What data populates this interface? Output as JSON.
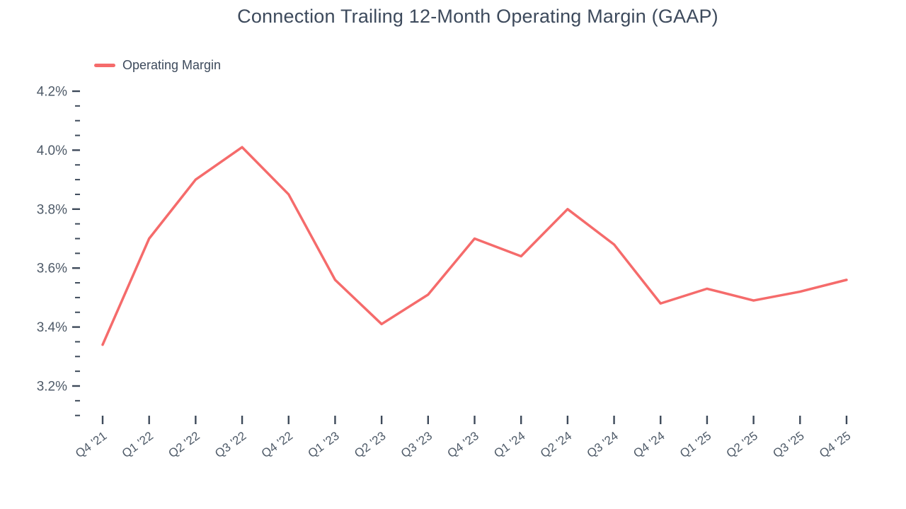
{
  "chart_data": {
    "type": "line",
    "title": "Connection Trailing 12-Month Operating Margin (GAAP)",
    "xlabel": "",
    "ylabel": "",
    "categories": [
      "Q4 '21",
      "Q1 '22",
      "Q2 '22",
      "Q3 '22",
      "Q4 '22",
      "Q1 '23",
      "Q2 '23",
      "Q3 '23",
      "Q4 '23",
      "Q1 '24",
      "Q2 '24",
      "Q3 '24",
      "Q4 '24",
      "Q1 '25",
      "Q2 '25",
      "Q3 '25",
      "Q4 '25"
    ],
    "series": [
      {
        "name": "Operating Margin",
        "color": "#f56b6b",
        "values": [
          3.34,
          3.7,
          3.9,
          4.01,
          3.85,
          3.56,
          3.41,
          3.51,
          3.7,
          3.64,
          3.8,
          3.68,
          3.48,
          3.53,
          3.49,
          3.52,
          3.56
        ]
      }
    ],
    "ylim": [
      3.05,
      4.25
    ],
    "yticks": [
      3.2,
      3.4,
      3.6,
      3.8,
      4.0,
      4.2
    ],
    "ytick_format": "percent",
    "minor_tick_step": 0.05,
    "grid": false,
    "legend_position": "top-left"
  },
  "colors": {
    "line": "#f56b6b",
    "title_text": "#3d4a5c",
    "axis_label_text": "#4e5a68",
    "tick_mark": "#3e4a5a"
  }
}
